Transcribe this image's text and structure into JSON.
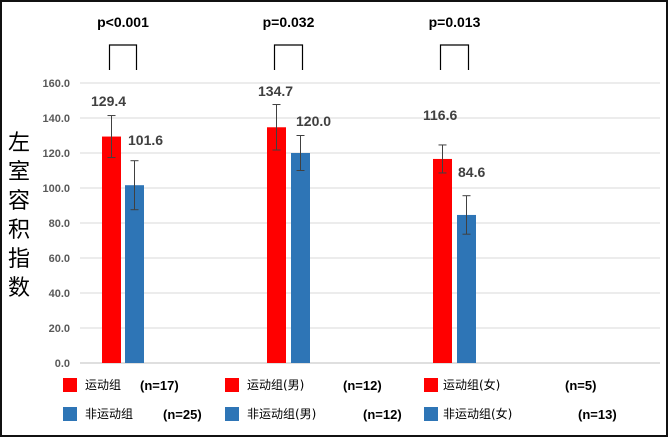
{
  "chart_data": {
    "type": "bar",
    "title": "",
    "xlabel": "",
    "ylabel": "左室容积指数",
    "ylim": [
      0,
      160
    ],
    "yticks": [
      "0.0",
      "20.0",
      "40.0",
      "60.0",
      "80.0",
      "100.0",
      "120.0",
      "140.0",
      "160.0"
    ],
    "grid": true,
    "groups": [
      {
        "p_value": "p<0.001",
        "bars": [
          {
            "value": 129.4,
            "label": "129.4",
            "error": 12,
            "color": "#ff0000"
          },
          {
            "value": 101.6,
            "label": "101.6",
            "error": 14,
            "color": "#2e75b6"
          }
        ]
      },
      {
        "p_value": "p=0.032",
        "bars": [
          {
            "value": 134.7,
            "label": "134.7",
            "error": 13,
            "color": "#ff0000"
          },
          {
            "value": 120.0,
            "label": "120.0",
            "error": 10,
            "color": "#2e75b6"
          }
        ]
      },
      {
        "p_value": "p=0.013",
        "bars": [
          {
            "value": 116.6,
            "label": "116.6",
            "error": 8,
            "color": "#ff0000"
          },
          {
            "value": 84.6,
            "label": "84.6",
            "error": 11,
            "color": "#2e75b6"
          }
        ]
      }
    ],
    "legend": [
      {
        "label": "运动组",
        "n": "(n=17)",
        "color": "#ff0000"
      },
      {
        "label": "运动组(男)",
        "n": "(n=12)",
        "color": "#ff0000"
      },
      {
        "label": "运动组(女)",
        "n": "(n=5)",
        "color": "#ff0000"
      },
      {
        "label": "非运动组",
        "n": "(n=25)",
        "color": "#2e75b6"
      },
      {
        "label": "非运动组(男)",
        "n": "(n=12)",
        "color": "#2e75b6"
      },
      {
        "label": "非运动组(女)",
        "n": "(n=13)",
        "color": "#2e75b6"
      }
    ]
  }
}
